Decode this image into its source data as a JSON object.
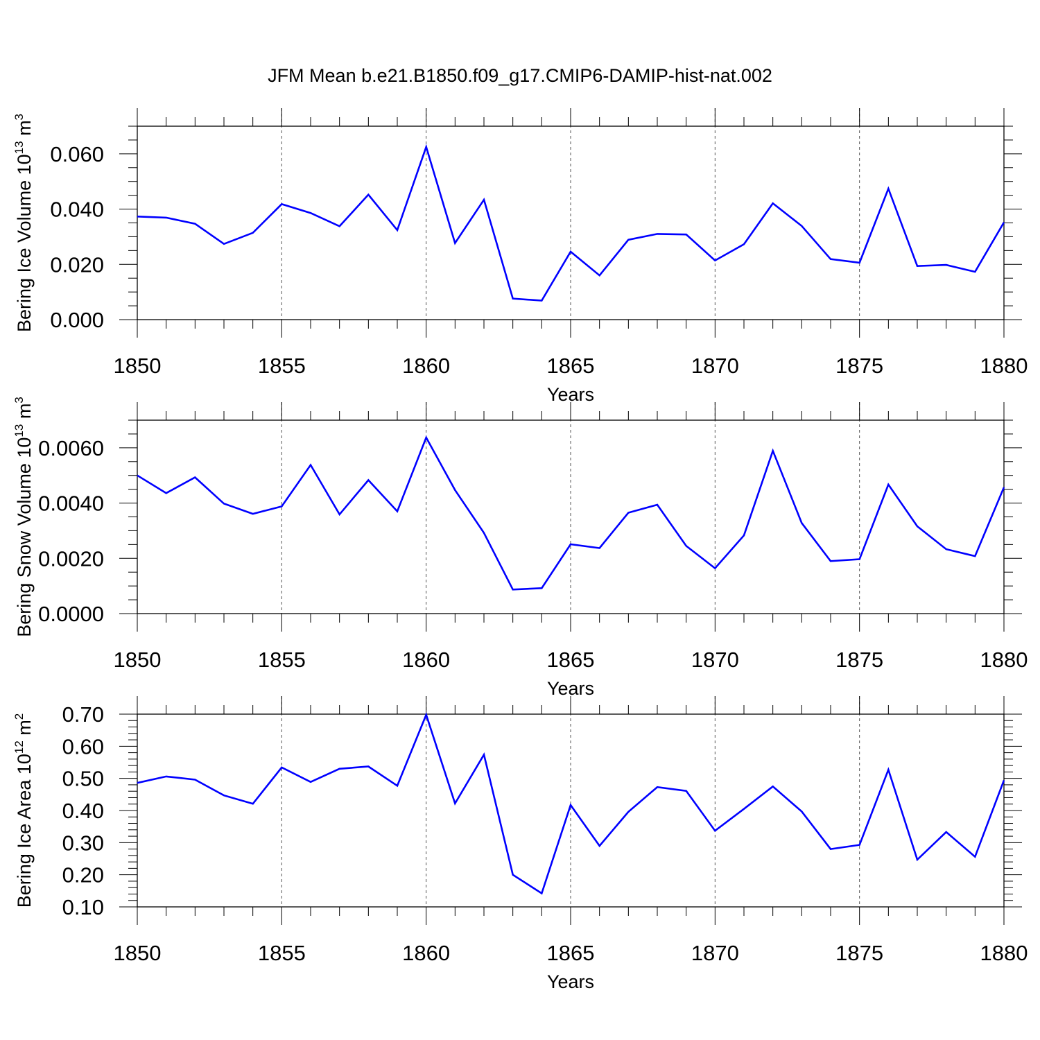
{
  "title": "JFM Mean b.e21.B1850.f09_g17.CMIP6-DAMIP-hist-nat.002",
  "line_color": "#0000ff",
  "chart_data": [
    {
      "type": "line",
      "ylabel_main": "Bering Ice Volume 10",
      "ylabel_sup": "13",
      "ylabel_unit": " m",
      "ylabel_unit_sup": "3",
      "xlabel": "Years",
      "xlim": [
        1850,
        1880
      ],
      "ylim": [
        0,
        0.07
      ],
      "ymajor": [
        0.0,
        0.02,
        0.04,
        0.06
      ],
      "ytick_labels": [
        "0.000",
        "0.020",
        "0.040",
        "0.060"
      ],
      "yminor_step": 0.005,
      "xticks": [
        1850,
        1855,
        1860,
        1865,
        1870,
        1875,
        1880
      ],
      "xtick_labels": [
        "1850",
        "1855",
        "1860",
        "1865",
        "1870",
        "1875",
        "1880"
      ],
      "x": [
        1850,
        1851,
        1852,
        1853,
        1854,
        1855,
        1856,
        1857,
        1858,
        1859,
        1860,
        1861,
        1862,
        1863,
        1864,
        1865,
        1866,
        1867,
        1868,
        1869,
        1870,
        1871,
        1872,
        1873,
        1874,
        1875,
        1876,
        1877,
        1878,
        1879,
        1880
      ],
      "series": [
        {
          "values": [
            0.0373,
            0.0369,
            0.0347,
            0.0274,
            0.0314,
            0.0418,
            0.0386,
            0.0338,
            0.0452,
            0.0324,
            0.0625,
            0.0277,
            0.0434,
            0.0076,
            0.0069,
            0.0246,
            0.016,
            0.0289,
            0.031,
            0.0308,
            0.0214,
            0.0273,
            0.0421,
            0.0339,
            0.0219,
            0.0206,
            0.0474,
            0.0194,
            0.0198,
            0.0173,
            0.0352
          ]
        }
      ]
    },
    {
      "type": "line",
      "ylabel_main": "Bering Snow Volume 10",
      "ylabel_sup": "13",
      "ylabel_unit": " m",
      "ylabel_unit_sup": "3",
      "xlabel": "Years",
      "xlim": [
        1850,
        1880
      ],
      "ylim": [
        0,
        0.007
      ],
      "ymajor": [
        0.0,
        0.002,
        0.004,
        0.006
      ],
      "ytick_labels": [
        "0.0000",
        "0.0020",
        "0.0040",
        "0.0060"
      ],
      "yminor_step": 0.0005,
      "xticks": [
        1850,
        1855,
        1860,
        1865,
        1870,
        1875,
        1880
      ],
      "xtick_labels": [
        "1850",
        "1855",
        "1860",
        "1865",
        "1870",
        "1875",
        "1880"
      ],
      "x": [
        1850,
        1851,
        1852,
        1853,
        1854,
        1855,
        1856,
        1857,
        1858,
        1859,
        1860,
        1861,
        1862,
        1863,
        1864,
        1865,
        1866,
        1867,
        1868,
        1869,
        1870,
        1871,
        1872,
        1873,
        1874,
        1875,
        1876,
        1877,
        1878,
        1879,
        1880
      ],
      "series": [
        {
          "values": [
            0.005,
            0.00436,
            0.00493,
            0.00398,
            0.00361,
            0.00388,
            0.00538,
            0.00359,
            0.00483,
            0.0037,
            0.00637,
            0.00447,
            0.00292,
            0.00087,
            0.00092,
            0.00251,
            0.00237,
            0.00365,
            0.00394,
            0.00245,
            0.00164,
            0.00283,
            0.00589,
            0.00328,
            0.0019,
            0.00197,
            0.00467,
            0.00316,
            0.00233,
            0.00208,
            0.00457
          ]
        }
      ]
    },
    {
      "type": "line",
      "ylabel_main": "Bering Ice Area 10",
      "ylabel_sup": "12",
      "ylabel_unit": " m",
      "ylabel_unit_sup": "2",
      "xlabel": "Years",
      "xlim": [
        1850,
        1880
      ],
      "ylim": [
        0.1,
        0.7
      ],
      "ymajor": [
        0.1,
        0.2,
        0.3,
        0.4,
        0.5,
        0.6,
        0.7
      ],
      "ytick_labels": [
        "0.10",
        "0.20",
        "0.30",
        "0.40",
        "0.50",
        "0.60",
        "0.70"
      ],
      "yminor_step": 0.02,
      "xticks": [
        1850,
        1855,
        1860,
        1865,
        1870,
        1875,
        1880
      ],
      "xtick_labels": [
        "1850",
        "1855",
        "1860",
        "1865",
        "1870",
        "1875",
        "1880"
      ],
      "x": [
        1850,
        1851,
        1852,
        1853,
        1854,
        1855,
        1856,
        1857,
        1858,
        1859,
        1860,
        1861,
        1862,
        1863,
        1864,
        1865,
        1866,
        1867,
        1868,
        1869,
        1870,
        1871,
        1872,
        1873,
        1874,
        1875,
        1876,
        1877,
        1878,
        1879,
        1880
      ],
      "series": [
        {
          "values": [
            0.486,
            0.506,
            0.496,
            0.447,
            0.421,
            0.534,
            0.489,
            0.53,
            0.537,
            0.477,
            0.698,
            0.422,
            0.574,
            0.2,
            0.142,
            0.417,
            0.29,
            0.396,
            0.473,
            0.461,
            0.337,
            0.405,
            0.475,
            0.397,
            0.28,
            0.293,
            0.527,
            0.247,
            0.333,
            0.256,
            0.494
          ]
        }
      ]
    }
  ]
}
